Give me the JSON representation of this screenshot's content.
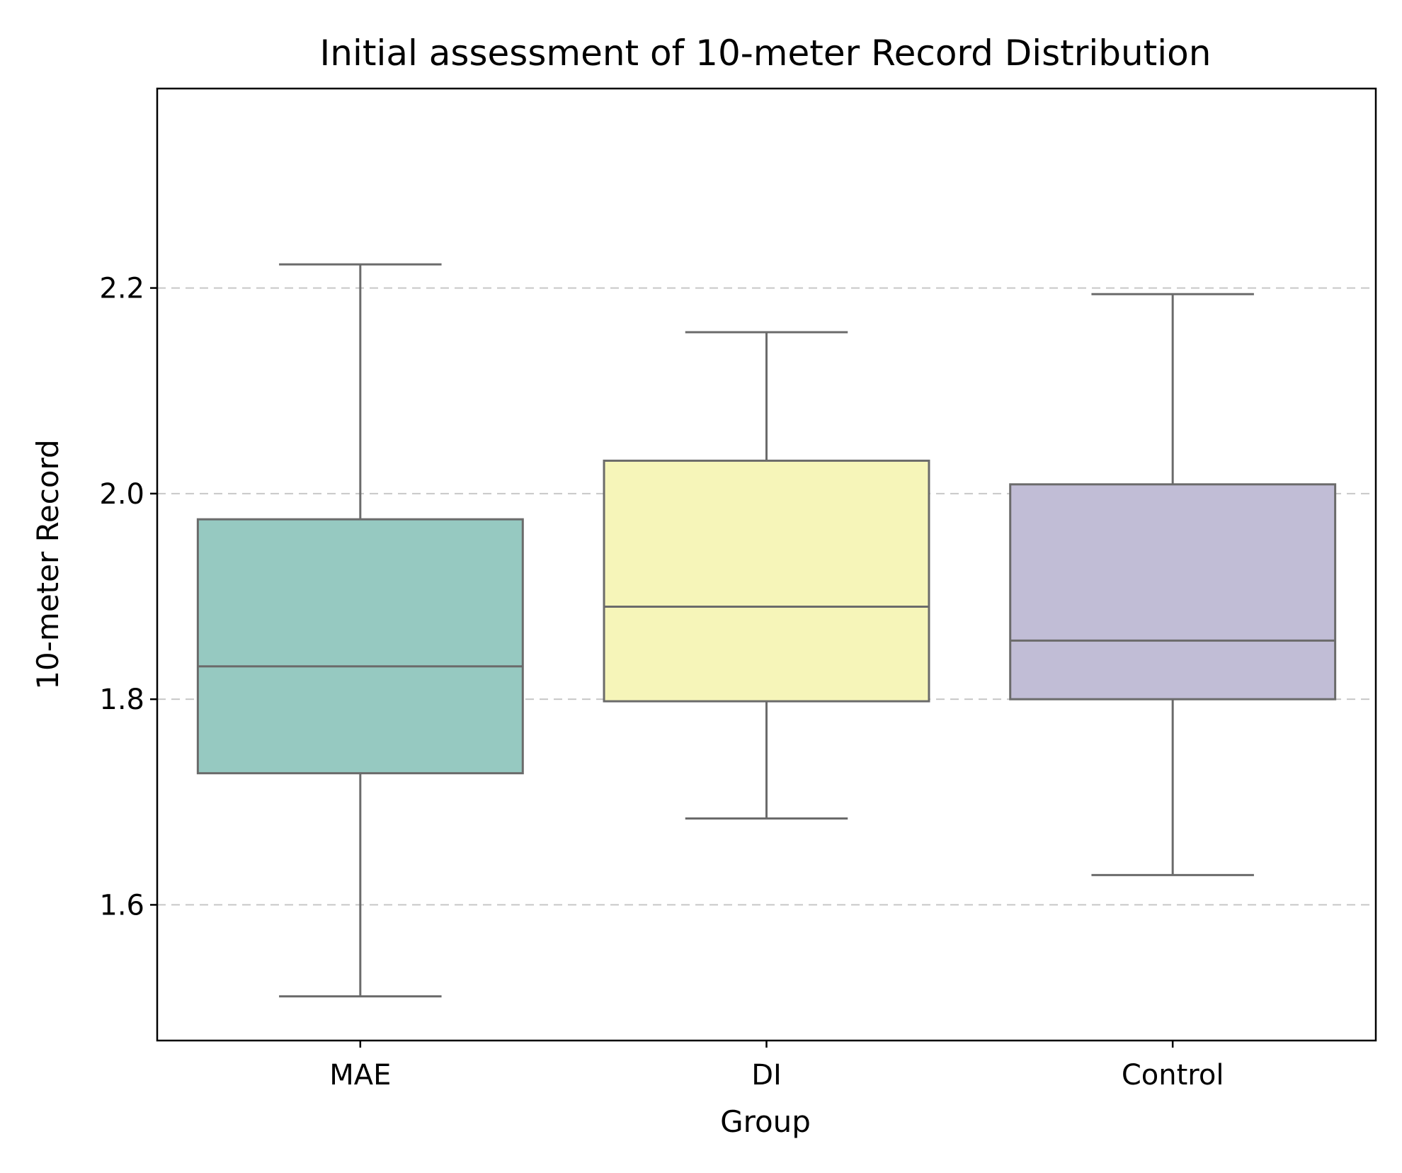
{
  "chart_data": {
    "type": "boxplot",
    "title": "Initial assessment of 10-meter Record Distribution",
    "xlabel": "Group",
    "ylabel": "10-meter Record",
    "ylim": [
      1.468,
      2.394
    ],
    "yticks": [
      1.6,
      1.8,
      2.0,
      2.2
    ],
    "ytick_labels": [
      "1.6",
      "1.8",
      "2.0",
      "2.2"
    ],
    "grid": "y-dashed",
    "categories": [
      "MAE",
      "DI",
      "Control"
    ],
    "boxes": [
      {
        "category": "MAE",
        "whislo": 1.511,
        "q1": 1.728,
        "med": 1.832,
        "q3": 1.975,
        "whishi": 2.223,
        "color": "#96c9c1"
      },
      {
        "category": "DI",
        "whislo": 1.684,
        "q1": 1.798,
        "med": 1.89,
        "q3": 2.032,
        "whishi": 2.157,
        "color": "#f6f5b9"
      },
      {
        "category": "Control",
        "whislo": 1.629,
        "q1": 1.8,
        "med": 1.857,
        "q3": 2.009,
        "whishi": 2.194,
        "color": "#c1bdd6"
      }
    ]
  }
}
